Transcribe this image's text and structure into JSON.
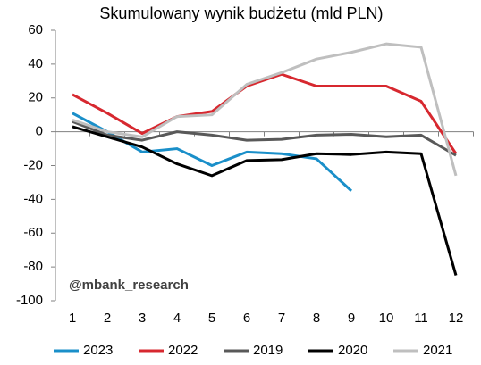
{
  "chart_data": {
    "type": "line",
    "title": "Skumulowany wynik budżetu (mld PLN)",
    "annotation": "@mbank_research",
    "categories": [
      "1",
      "2",
      "3",
      "4",
      "5",
      "6",
      "7",
      "8",
      "9",
      "10",
      "11",
      "12"
    ],
    "ylim": [
      -100,
      60
    ],
    "yticks": [
      60,
      40,
      20,
      0,
      -20,
      -40,
      -60,
      -80,
      -100
    ],
    "grid": false,
    "series": [
      {
        "name": "2023",
        "color": "#1a8fc9",
        "values": [
          11,
          0,
          -12,
          -10,
          -20,
          -12,
          -13,
          -16,
          -35,
          null,
          null,
          null
        ]
      },
      {
        "name": "2022",
        "color": "#d7282f",
        "values": [
          22,
          11,
          -1,
          9,
          12,
          27,
          34,
          27,
          27,
          27,
          18,
          -13
        ]
      },
      {
        "name": "2019",
        "color": "#595959",
        "values": [
          6,
          -2,
          -5,
          0,
          -2,
          -5,
          -4.5,
          -2,
          -1.5,
          -3,
          -2,
          -14
        ]
      },
      {
        "name": "2020",
        "color": "#000000",
        "values": [
          3,
          -3,
          -9,
          -19,
          -26,
          -17,
          -16.5,
          -13,
          -13.5,
          -12,
          -13,
          -85
        ]
      },
      {
        "name": "2021",
        "color": "#bfbfbf",
        "values": [
          7,
          0,
          -3,
          9,
          10,
          28,
          35,
          43,
          47,
          52,
          50,
          -26
        ]
      }
    ]
  }
}
